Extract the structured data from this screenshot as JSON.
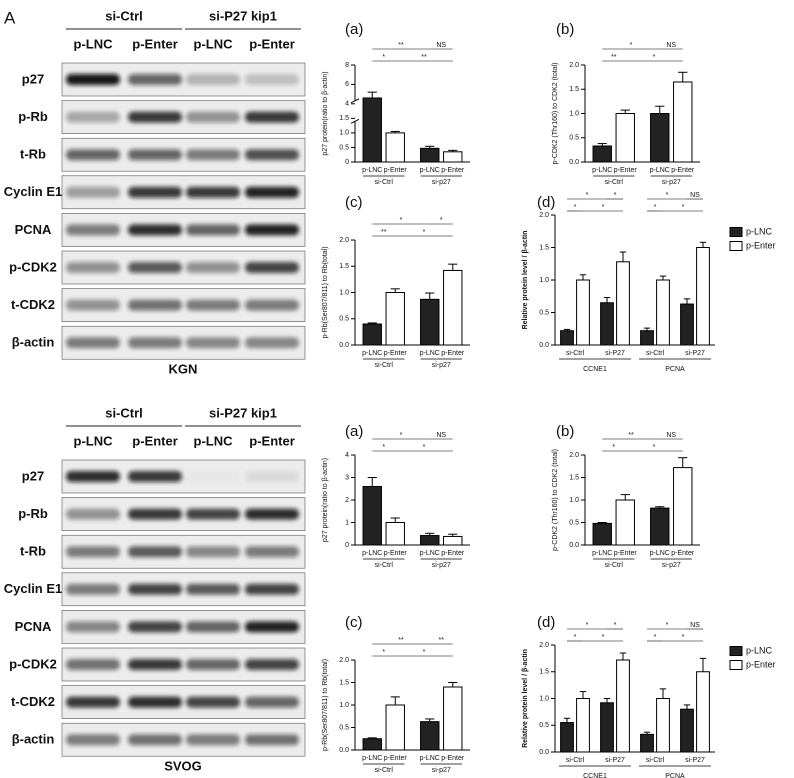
{
  "panel_label": "A",
  "blots": [
    {
      "groups": [
        "si-Ctrl",
        "si-P27 kip1"
      ],
      "lanes": [
        "p-LNC",
        "p-Enter",
        "p-LNC",
        "p-Enter"
      ],
      "rows": [
        "p27",
        "p-Rb",
        "t-Rb",
        "Cyclin E1",
        "PCNA",
        "p-CDK2",
        "t-CDK2",
        "β-actin"
      ],
      "cell_line": "KGN"
    },
    {
      "groups": [
        "si-Ctrl",
        "si-P27 kip1"
      ],
      "lanes": [
        "p-LNC",
        "p-Enter",
        "p-LNC",
        "p-Enter"
      ],
      "rows": [
        "p27",
        "p-Rb",
        "t-Rb",
        "Cyclin E1",
        "PCNA",
        "p-CDK2",
        "t-CDK2",
        "β-actin"
      ],
      "cell_line": "SVOG"
    }
  ],
  "chart_data": [
    {
      "type": "bar",
      "title": "(a)",
      "ylabel": "p27 protein(ratio to β-actin)",
      "categories": [
        "si-Ctrl",
        "si-p27"
      ],
      "series": [
        {
          "name": "p-LNC",
          "color": "#222222",
          "values": [
            4.6,
            0.47
          ],
          "errors": [
            0.6,
            0.07
          ]
        },
        {
          "name": "p-Enter",
          "color": "#ffffff",
          "values": [
            1.0,
            0.35
          ],
          "errors": [
            0.05,
            0.05
          ]
        }
      ],
      "ylim": [
        0,
        8
      ],
      "ybreak": [
        1.5,
        4
      ],
      "yticks": [
        0,
        0.5,
        {
          "value": 1,
          "label": "1.0"
        },
        1.5,
        4,
        6,
        8
      ],
      "annotations": [
        "**",
        "NS",
        "*",
        "**"
      ]
    },
    {
      "type": "bar",
      "title": "(b)",
      "ylabel": "p-CDK2 (Thr160) to CDK2 (total)",
      "categories": [
        "si-Ctrl",
        "si-p27"
      ],
      "series": [
        {
          "name": "p-LNC",
          "color": "#222222",
          "values": [
            0.33,
            1.0
          ],
          "errors": [
            0.05,
            0.15
          ]
        },
        {
          "name": "p-Enter",
          "color": "#ffffff",
          "values": [
            1.0,
            1.65
          ],
          "errors": [
            0.07,
            0.2
          ]
        }
      ],
      "ylim": [
        0,
        2
      ],
      "yticks": [
        {
          "value": 0,
          "label": "0.0"
        },
        0.5,
        {
          "value": 1,
          "label": "1.0"
        },
        1.5,
        {
          "value": 2,
          "label": "2.0"
        }
      ],
      "annotations": [
        "*",
        "NS",
        "**",
        "*"
      ]
    },
    {
      "type": "bar",
      "title": "(c)",
      "ylabel": "p-Rb(Ser807/811) to Rb(total)",
      "categories": [
        "si-Ctrl",
        "si-p27"
      ],
      "series": [
        {
          "name": "p-LNC",
          "color": "#222222",
          "values": [
            0.4,
            0.87
          ],
          "errors": [
            0.02,
            0.12
          ]
        },
        {
          "name": "p-Enter",
          "color": "#ffffff",
          "values": [
            1.0,
            1.42
          ],
          "errors": [
            0.07,
            0.12
          ]
        }
      ],
      "ylim": [
        0,
        2
      ],
      "yticks": [
        {
          "value": 0,
          "label": "0.0"
        },
        0.5,
        {
          "value": 1,
          "label": "1.0"
        },
        1.5,
        {
          "value": 2,
          "label": "2.0"
        }
      ],
      "annotations": [
        "*",
        "*",
        "**",
        "*"
      ]
    },
    {
      "type": "bar",
      "title": "(d)",
      "ylabel": "Relative protein level / β-actin",
      "categories": [
        "si-Ctrl",
        "si-P27",
        "si-Ctrl",
        "si-P27"
      ],
      "groups": [
        "CCNE1",
        "PCNA"
      ],
      "legend": "right",
      "series": [
        {
          "name": "p-LNC",
          "color": "#222222",
          "values": [
            0.22,
            0.65,
            0.22,
            0.63
          ],
          "errors": [
            0.02,
            0.08,
            0.04,
            0.08
          ]
        },
        {
          "name": "p-Enter",
          "color": "#ffffff",
          "values": [
            1.0,
            1.28,
            1.0,
            1.5
          ],
          "errors": [
            0.08,
            0.15,
            0.06,
            0.08
          ]
        }
      ],
      "ylim": [
        0,
        2
      ],
      "yticks": [
        {
          "value": 0,
          "label": "0.0"
        },
        0.5,
        {
          "value": 1,
          "label": "1.0"
        },
        1.5,
        {
          "value": 2,
          "label": "2.0"
        }
      ],
      "annotations": [
        "*",
        "*",
        "*",
        "*",
        "*",
        "NS",
        "*",
        "*"
      ]
    },
    {
      "type": "bar",
      "title": "(a)",
      "ylabel": "p27 protein(ratio to β-actin)",
      "categories": [
        "si-Ctrl",
        "si-p27"
      ],
      "series": [
        {
          "name": "p-LNC",
          "color": "#222222",
          "values": [
            2.6,
            0.42
          ],
          "errors": [
            0.4,
            0.1
          ]
        },
        {
          "name": "p-Enter",
          "color": "#ffffff",
          "values": [
            1.0,
            0.38
          ],
          "errors": [
            0.2,
            0.1
          ]
        }
      ],
      "ylim": [
        0,
        4
      ],
      "yticks": [
        0,
        1,
        2,
        3,
        4
      ],
      "annotations": [
        "*",
        "NS",
        "*",
        "*"
      ]
    },
    {
      "type": "bar",
      "title": "(b)",
      "ylabel": "p-CDK2 (Thr160) to CDK2 (total)",
      "categories": [
        "si-Ctrl",
        "si-p27"
      ],
      "series": [
        {
          "name": "p-LNC",
          "color": "#222222",
          "values": [
            0.48,
            0.82
          ],
          "errors": [
            0.02,
            0.03
          ]
        },
        {
          "name": "p-Enter",
          "color": "#ffffff",
          "values": [
            1.0,
            1.72
          ],
          "errors": [
            0.12,
            0.22
          ]
        }
      ],
      "ylim": [
        0,
        2
      ],
      "yticks": [
        {
          "value": 0,
          "label": "0.0"
        },
        0.5,
        {
          "value": 1,
          "label": "1.0"
        },
        1.5,
        {
          "value": 2,
          "label": "2.0"
        }
      ],
      "annotations": [
        "**",
        "NS",
        "*",
        "*"
      ]
    },
    {
      "type": "bar",
      "title": "(c)",
      "ylabel": "p-Rb(Ser807/811) to Rb(total)",
      "categories": [
        "si-Ctrl",
        "si-p27"
      ],
      "series": [
        {
          "name": "p-LNC",
          "color": "#222222",
          "values": [
            0.25,
            0.63
          ],
          "errors": [
            0.02,
            0.06
          ]
        },
        {
          "name": "p-Enter",
          "color": "#ffffff",
          "values": [
            1.0,
            1.4
          ],
          "errors": [
            0.18,
            0.1
          ]
        }
      ],
      "ylim": [
        0,
        2
      ],
      "yticks": [
        {
          "value": 0,
          "label": "0.0"
        },
        0.5,
        {
          "value": 1,
          "label": "1.0"
        },
        1.5,
        {
          "value": 2,
          "label": "2.0"
        }
      ],
      "annotations": [
        "**",
        "**",
        "*",
        "*"
      ]
    },
    {
      "type": "bar",
      "title": "(d)",
      "ylabel": "Relative protein level / β-actin",
      "categories": [
        "si-Ctrl",
        "si-P27",
        "si-Ctrl",
        "si-P27"
      ],
      "groups": [
        "CCNE1",
        "PCNA"
      ],
      "legend": "right",
      "series": [
        {
          "name": "p-LNC",
          "color": "#222222",
          "values": [
            0.55,
            0.92,
            0.33,
            0.8
          ],
          "errors": [
            0.08,
            0.08,
            0.04,
            0.08
          ]
        },
        {
          "name": "p-Enter",
          "color": "#ffffff",
          "values": [
            1.0,
            1.72,
            1.0,
            1.5
          ],
          "errors": [
            0.13,
            0.13,
            0.18,
            0.25
          ]
        }
      ],
      "ylim": [
        0,
        2
      ],
      "yticks": [
        {
          "value": 0,
          "label": "0.0"
        },
        0.5,
        {
          "value": 1,
          "label": "1.0"
        },
        1.5,
        {
          "value": 2,
          "label": "2.0"
        }
      ],
      "annotations": [
        "*",
        "*",
        "*",
        "*",
        "*",
        "NS",
        "*",
        "*"
      ]
    }
  ]
}
